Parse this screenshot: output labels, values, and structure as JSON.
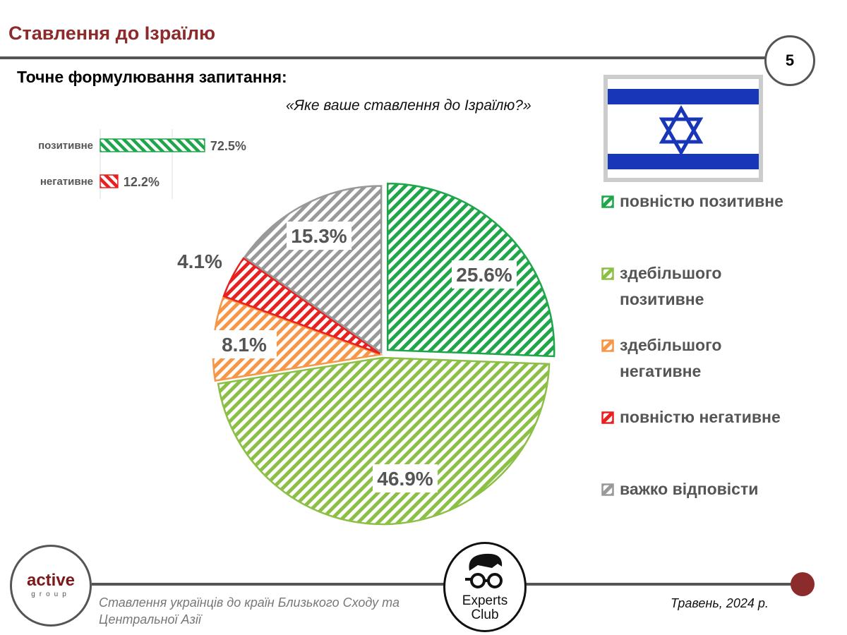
{
  "header": {
    "title": "Ставлення до Ізраїлю",
    "page_number": "5"
  },
  "question": {
    "label": "Точне формулювання запитання:",
    "text": "«Яке ваше ставлення до Ізраїлю?»"
  },
  "footer": {
    "subtitle": "Ставлення українців до країн Близького Сходу та Центральної Азії",
    "date": "Травень, 2024 р.",
    "logo_left": "active group",
    "logo_center": "Experts Club"
  },
  "chart_data": [
    {
      "type": "bar",
      "orientation": "horizontal",
      "categories": [
        "позитивне",
        "негативне"
      ],
      "values": [
        72.5,
        12.2
      ],
      "labels": [
        "72.5%",
        "12.2%"
      ],
      "colors": [
        "#1fa64a",
        "#e8201f"
      ],
      "xlim": [
        0,
        100
      ],
      "grid": true
    },
    {
      "type": "pie",
      "categories": [
        "повністю позитивне",
        "здебільшого позитивне",
        "здебільшого негативне",
        "повністю негативне",
        "важко відповісти"
      ],
      "values": [
        25.6,
        46.9,
        8.1,
        4.1,
        15.3
      ],
      "labels": [
        "25.6%",
        "46.9%",
        "8.1%",
        "4.1%",
        "15.3%"
      ],
      "colors": [
        "#1fa64a",
        "#8cbf45",
        "#f79646",
        "#e8201f",
        "#999999"
      ],
      "legend": "right",
      "fill": "hatched"
    }
  ]
}
